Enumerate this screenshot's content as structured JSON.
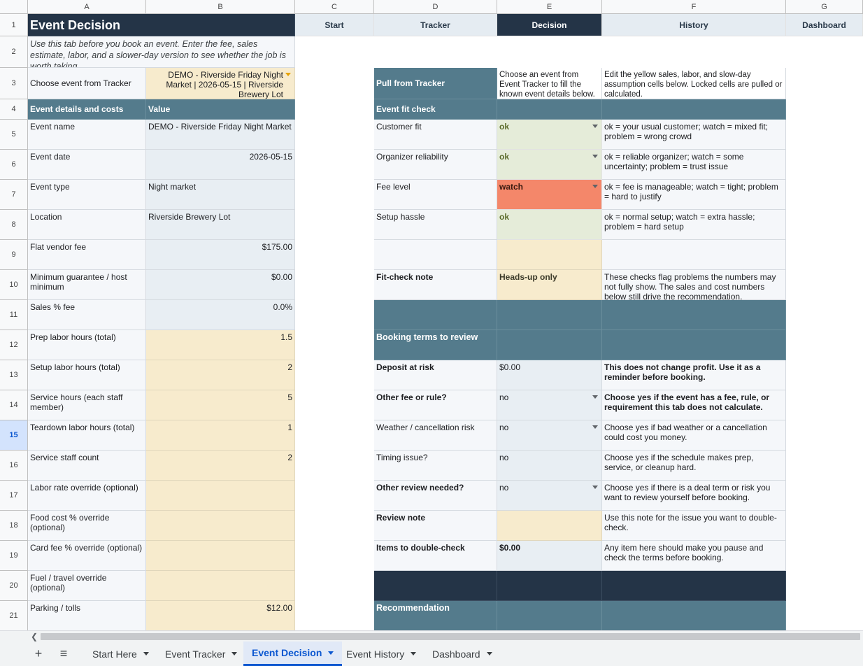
{
  "columns": [
    "A",
    "B",
    "C",
    "D",
    "E",
    "F",
    "G"
  ],
  "rows": [
    "1",
    "2",
    "3",
    "4",
    "5",
    "6",
    "7",
    "8",
    "9",
    "10",
    "11",
    "12",
    "13",
    "14",
    "15",
    "16",
    "17",
    "18",
    "19",
    "20",
    "21"
  ],
  "selected_row": "15",
  "title": "Event Decision",
  "nav": {
    "start": "Start",
    "tracker": "Tracker",
    "decision": "Decision",
    "history": "History",
    "dashboard": "Dashboard"
  },
  "intro": "Use this tab before you book an event. Enter the fee, sales estimate, labor, and a slower-day version to see whether the job is worth taking.",
  "choose": {
    "label": "Choose event from Tracker",
    "value": "DEMO - Riverside Friday Night Market | 2026-05-15 | Riverside Brewery Lot"
  },
  "details": {
    "header_label": "Event details and costs",
    "header_value": "Value",
    "rows": [
      {
        "label": "Event name",
        "value": "DEMO - Riverside Friday Night Market"
      },
      {
        "label": "Event date",
        "value": "2026-05-15"
      },
      {
        "label": "Event type",
        "value": "Night market"
      },
      {
        "label": "Location",
        "value": "Riverside Brewery Lot"
      },
      {
        "label": "Flat vendor fee",
        "value": "$175.00"
      },
      {
        "label": "Minimum guarantee / host minimum",
        "value": "$0.00"
      },
      {
        "label": "Sales % fee",
        "value": "0.0%"
      },
      {
        "label": "Prep labor hours (total)",
        "value": "1.5"
      },
      {
        "label": "Setup labor hours (total)",
        "value": "2"
      },
      {
        "label": "Service hours (each staff member)",
        "value": "5"
      },
      {
        "label": "Teardown labor hours (total)",
        "value": "1"
      },
      {
        "label": "Service staff count",
        "value": "2"
      },
      {
        "label": "Labor rate override (optional)",
        "value": ""
      },
      {
        "label": "Food cost % override (optional)",
        "value": ""
      },
      {
        "label": "Card fee % override (optional)",
        "value": ""
      },
      {
        "label": "Fuel / travel override (optional)",
        "value": ""
      },
      {
        "label": "Parking / tolls",
        "value": "$12.00"
      }
    ]
  },
  "pull": {
    "label": "Pull from Tracker",
    "instruction": "Choose an event from Event Tracker to fill the known event details below.",
    "note": "Edit the yellow sales, labor, and slow-day assumption cells below. Locked cells are pulled or calculated."
  },
  "fit": {
    "header": "Event fit check",
    "rows": [
      {
        "label": "Customer fit",
        "value": "ok",
        "note": "ok = your usual customer; watch = mixed fit; problem = wrong crowd"
      },
      {
        "label": "Organizer reliability",
        "value": "ok",
        "note": "ok = reliable organizer; watch = some uncertainty; problem = trust issue"
      },
      {
        "label": "Fee level",
        "value": "watch",
        "note": "ok = fee is manageable; watch = tight; problem = hard to justify"
      },
      {
        "label": "Setup hassle",
        "value": "ok",
        "note": "ok = normal setup; watch = extra hassle; problem = hard setup"
      }
    ],
    "note_label": "Fit-check note",
    "note_value": "Heads-up only",
    "note_text": "These checks flag problems the numbers may not fully show. The sales and cost numbers below still drive the recommendation."
  },
  "booking": {
    "header": "Booking terms to review",
    "rows": [
      {
        "label": "Deposit at risk",
        "value": "$0.00",
        "note": "This does not change profit. Use it as a reminder before booking."
      },
      {
        "label": "Other fee or rule?",
        "value": "no",
        "note": "Choose yes if the event has a fee, rule, or requirement this tab does not calculate."
      },
      {
        "label": "Weather / cancellation risk",
        "value": "no",
        "note": "Choose yes if bad weather or a cancellation could cost you money."
      },
      {
        "label": "Timing issue?",
        "value": "no",
        "note": "Choose yes if the schedule makes prep, service, or cleanup hard."
      },
      {
        "label": "Other review needed?",
        "value": "no",
        "note": "Choose yes if there is a deal term or risk you want to review yourself before booking."
      },
      {
        "label": "Review note",
        "value": "",
        "note": "Use this note for the issue you want to double-check."
      },
      {
        "label": "Items to double-check",
        "value": "$0.00",
        "note": "Any item here should make you pause and check the terms before booking."
      }
    ]
  },
  "recommendation": "Recommendation",
  "tabs": [
    "Start Here",
    "Event Tracker",
    "Event Decision",
    "Event History",
    "Dashboard"
  ],
  "active_tab": "Event Decision"
}
